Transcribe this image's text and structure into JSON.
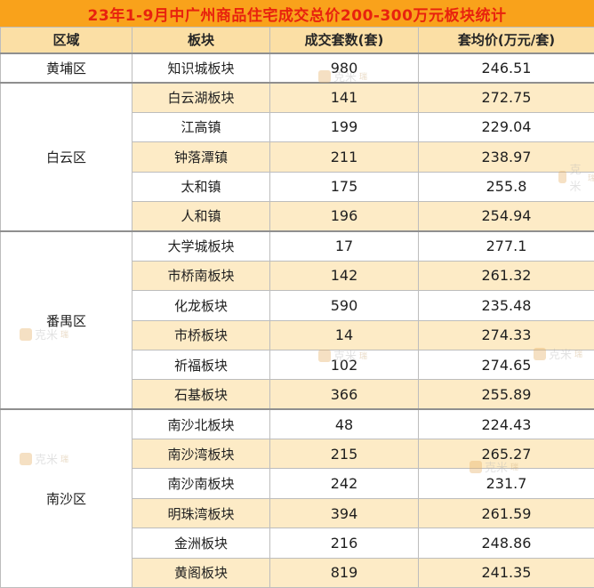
{
  "title": "23年1-9月中广州商品住宅成交总价200-300万元板块统计",
  "columns": [
    "区域",
    "板块",
    "成交套数(套)",
    "套均价(万元/套)"
  ],
  "regions": [
    {
      "name": "黄埔区",
      "rows": [
        [
          "知识城板块",
          "980",
          "246.51"
        ]
      ]
    },
    {
      "name": "白云区",
      "rows": [
        [
          "白云湖板块",
          "141",
          "272.75"
        ],
        [
          "江高镇",
          "199",
          "229.04"
        ],
        [
          "钟落潭镇",
          "211",
          "238.97"
        ],
        [
          "太和镇",
          "175",
          "255.8"
        ],
        [
          "人和镇",
          "196",
          "254.94"
        ]
      ]
    },
    {
      "name": "番禺区",
      "rows": [
        [
          "大学城板块",
          "17",
          "277.1"
        ],
        [
          "市桥南板块",
          "142",
          "261.32"
        ],
        [
          "化龙板块",
          "590",
          "235.48"
        ],
        [
          "市桥板块",
          "14",
          "274.33"
        ],
        [
          "祈福板块",
          "102",
          "274.65"
        ],
        [
          "石基板块",
          "366",
          "255.89"
        ]
      ]
    },
    {
      "name": "南沙区",
      "rows": [
        [
          "南沙北板块",
          "48",
          "224.43"
        ],
        [
          "南沙湾板块",
          "215",
          "265.27"
        ],
        [
          "南沙南板块",
          "242",
          "231.7"
        ],
        [
          "明珠湾板块",
          "394",
          "261.59"
        ],
        [
          "金洲板块",
          "216",
          "248.86"
        ],
        [
          "黄阁板块",
          "819",
          "241.35"
        ]
      ]
    }
  ],
  "watermark": {
    "text": "克米",
    "suffix": "瑞"
  },
  "colors": {
    "title_bg": "#F9A21B",
    "title_text": "#E8220E",
    "header_bg": "#FBDFA5",
    "row_alt_bg": "#FDEBC6",
    "row_bg": "#FFFFFF",
    "border_light": "#BDBDBD",
    "border_dark": "#8F8F8F",
    "text": "#1F1F1F"
  },
  "chart_data": {
    "type": "table",
    "title": "23年1-9月中广州商品住宅成交总价200-300万元板块统计",
    "columns": [
      "区域",
      "板块",
      "成交套数(套)",
      "套均价(万元/套)"
    ],
    "rows": [
      [
        "黄埔区",
        "知识城板块",
        980,
        246.51
      ],
      [
        "白云区",
        "白云湖板块",
        141,
        272.75
      ],
      [
        "白云区",
        "江高镇",
        199,
        229.04
      ],
      [
        "白云区",
        "钟落潭镇",
        211,
        238.97
      ],
      [
        "白云区",
        "太和镇",
        175,
        255.8
      ],
      [
        "白云区",
        "人和镇",
        196,
        254.94
      ],
      [
        "番禺区",
        "大学城板块",
        17,
        277.1
      ],
      [
        "番禺区",
        "市桥南板块",
        142,
        261.32
      ],
      [
        "番禺区",
        "化龙板块",
        590,
        235.48
      ],
      [
        "番禺区",
        "市桥板块",
        14,
        274.33
      ],
      [
        "番禺区",
        "祈福板块",
        102,
        274.65
      ],
      [
        "番禺区",
        "石基板块",
        366,
        255.89
      ],
      [
        "南沙区",
        "南沙北板块",
        48,
        224.43
      ],
      [
        "南沙区",
        "南沙湾板块",
        215,
        265.27
      ],
      [
        "南沙区",
        "南沙南板块",
        242,
        231.7
      ],
      [
        "南沙区",
        "明珠湾板块",
        394,
        261.59
      ],
      [
        "南沙区",
        "金洲板块",
        216,
        248.86
      ],
      [
        "南沙区",
        "黄阁板块",
        819,
        241.35
      ]
    ]
  }
}
